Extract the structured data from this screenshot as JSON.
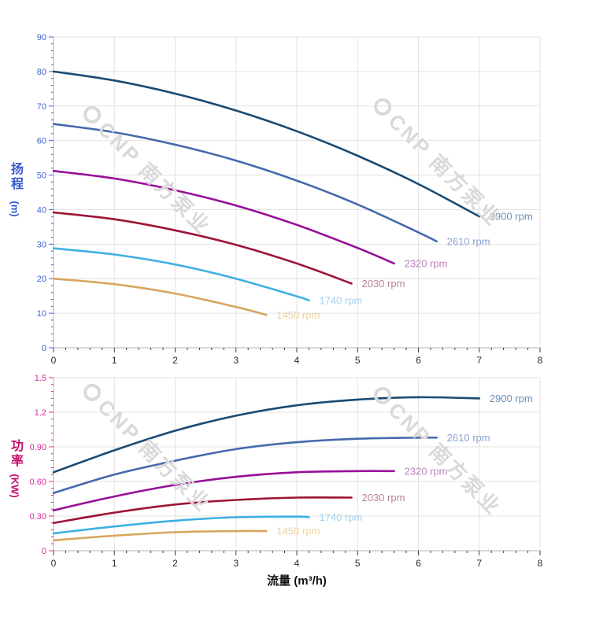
{
  "watermark": {
    "text": "CNP 南方泵业",
    "color": "#d9d9d9"
  },
  "x_axis_title": "流量 (m³/h)",
  "chart_data": [
    {
      "type": "line",
      "id": "head-chart",
      "ylabel": "扬程 (m)",
      "ylabel_cn": "扬程",
      "ylabel_unit": "(m)",
      "xlabel": "",
      "ylim": [
        0,
        90
      ],
      "xlim": [
        0,
        8
      ],
      "y_major_step": 10,
      "y_minor_step": 2,
      "x_major_step": 1,
      "x_minor_step": 0.2,
      "grid": true,
      "axis_color": "#3f63cf",
      "y_tick_labels": [
        "0",
        "10",
        "20",
        "30",
        "40",
        "50",
        "60",
        "70",
        "80",
        "90"
      ],
      "x_tick_labels": [
        "0",
        "1",
        "2",
        "3",
        "4",
        "5",
        "6",
        "7",
        "8"
      ],
      "legend_position": "curve-end-labels",
      "series": [
        {
          "name": "2900 rpm",
          "color": "#1a4a73",
          "label_color": "#6e91b2",
          "points": [
            [
              0,
              80
            ],
            [
              1,
              77.4
            ],
            [
              2,
              73.6
            ],
            [
              3,
              68.7
            ],
            [
              4,
              62.7
            ],
            [
              5,
              55.6
            ],
            [
              6,
              47.4
            ],
            [
              7,
              38
            ]
          ]
        },
        {
          "name": "2610 rpm",
          "color": "#4569ae",
          "label_color": "#8ba3d4",
          "points": [
            [
              0,
              64.8
            ],
            [
              1,
              62.4
            ],
            [
              2,
              58.8
            ],
            [
              3,
              54.2
            ],
            [
              4,
              48.4
            ],
            [
              5,
              41.5
            ],
            [
              6,
              33.4
            ],
            [
              6.3,
              30.8
            ]
          ]
        },
        {
          "name": "2320 rpm",
          "color": "#970e97",
          "label_color": "#bd80bd",
          "points": [
            [
              0,
              51.2
            ],
            [
              1,
              49
            ],
            [
              2,
              45.6
            ],
            [
              3,
              41.2
            ],
            [
              4,
              35.6
            ],
            [
              5,
              28.9
            ],
            [
              5.6,
              24.4
            ]
          ]
        },
        {
          "name": "2030 rpm",
          "color": "#9d1535",
          "label_color": "#bc7f96",
          "points": [
            [
              0,
              39.2
            ],
            [
              1,
              37.2
            ],
            [
              2,
              34
            ],
            [
              3,
              29.8
            ],
            [
              4,
              24.4
            ],
            [
              4.9,
              18.6
            ]
          ]
        },
        {
          "name": "1740 rpm",
          "color": "#3eafe4",
          "label_color": "#9fd2f0",
          "points": [
            [
              0,
              28.8
            ],
            [
              1,
              27
            ],
            [
              2,
              24.1
            ],
            [
              3,
              20
            ],
            [
              4,
              14.9
            ],
            [
              4.2,
              13.7
            ]
          ]
        },
        {
          "name": "1450 rpm",
          "color": "#d9a55e",
          "label_color": "#ead0a2",
          "points": [
            [
              0,
              20
            ],
            [
              1,
              18.4
            ],
            [
              2,
              15.7
            ],
            [
              3,
              11.8
            ],
            [
              3.5,
              9.5
            ]
          ]
        }
      ]
    },
    {
      "type": "line",
      "id": "power-chart",
      "ylabel": "功率 (KW)",
      "ylabel_cn": "功率",
      "ylabel_unit": "(KW)",
      "xlabel": "流量 (m³/h)",
      "ylim": [
        0,
        1.5
      ],
      "xlim": [
        0,
        8
      ],
      "y_major_step": 0.3,
      "y_minor_step": 0.06,
      "x_major_step": 1,
      "x_minor_step": 0.2,
      "grid": true,
      "axis_color": "#d62a9a",
      "y_tick_labels": [
        "0",
        "0.30",
        "0.60",
        "0.90",
        "1.2",
        "1.5"
      ],
      "x_tick_labels": [
        "0",
        "1",
        "2",
        "3",
        "4",
        "5",
        "6",
        "7",
        "8"
      ],
      "legend_position": "curve-end-labels",
      "series": [
        {
          "name": "2900 rpm",
          "color": "#1a4a73",
          "label_color": "#6e91b2",
          "points": [
            [
              0,
              0.68
            ],
            [
              1,
              0.87
            ],
            [
              2,
              1.04
            ],
            [
              3,
              1.17
            ],
            [
              4,
              1.26
            ],
            [
              5,
              1.31
            ],
            [
              6,
              1.33
            ],
            [
              7,
              1.32
            ]
          ]
        },
        {
          "name": "2610 rpm",
          "color": "#4569ae",
          "label_color": "#8ba3d4",
          "points": [
            [
              0,
              0.5
            ],
            [
              1,
              0.66
            ],
            [
              2,
              0.78
            ],
            [
              3,
              0.88
            ],
            [
              4,
              0.94
            ],
            [
              5,
              0.97
            ],
            [
              6,
              0.98
            ],
            [
              6.3,
              0.98
            ]
          ]
        },
        {
          "name": "2320 rpm",
          "color": "#970e97",
          "label_color": "#bd80bd",
          "points": [
            [
              0,
              0.35
            ],
            [
              1,
              0.47
            ],
            [
              2,
              0.57
            ],
            [
              3,
              0.64
            ],
            [
              4,
              0.68
            ],
            [
              5,
              0.69
            ],
            [
              5.6,
              0.69
            ]
          ]
        },
        {
          "name": "2030 rpm",
          "color": "#9d1535",
          "label_color": "#bc7f96",
          "points": [
            [
              0,
              0.24
            ],
            [
              1,
              0.33
            ],
            [
              2,
              0.4
            ],
            [
              3,
              0.44
            ],
            [
              4,
              0.46
            ],
            [
              4.9,
              0.46
            ]
          ]
        },
        {
          "name": "1740 rpm",
          "color": "#3eafe4",
          "label_color": "#9fd2f0",
          "points": [
            [
              0,
              0.15
            ],
            [
              1,
              0.21
            ],
            [
              2,
              0.26
            ],
            [
              3,
              0.29
            ],
            [
              4,
              0.295
            ],
            [
              4.2,
              0.29
            ]
          ]
        },
        {
          "name": "1450 rpm",
          "color": "#d9a55e",
          "label_color": "#ead0a2",
          "points": [
            [
              0,
              0.09
            ],
            [
              1,
              0.13
            ],
            [
              2,
              0.16
            ],
            [
              3,
              0.17
            ],
            [
              3.5,
              0.17
            ]
          ]
        }
      ]
    }
  ]
}
